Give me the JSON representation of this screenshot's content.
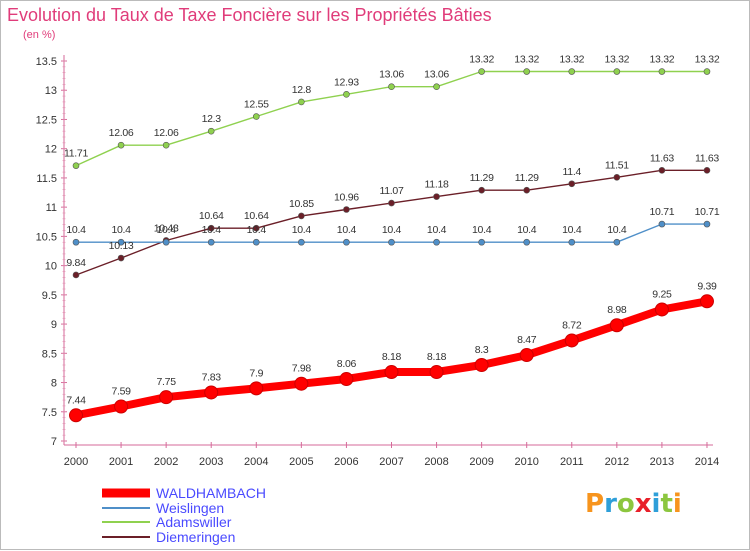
{
  "chart_data": {
    "type": "line",
    "title": "Evolution du Taux de Taxe Foncière sur les Propriétés Bâties",
    "unit_label": "(en %)",
    "x": [
      "2000",
      "2001",
      "2002",
      "2003",
      "2004",
      "2005",
      "2006",
      "2007",
      "2008",
      "2009",
      "2010",
      "2011",
      "2012",
      "2013",
      "2014"
    ],
    "ylim": [
      7,
      13.5
    ],
    "yticks": [
      "7",
      "7.5",
      "8",
      "8.5",
      "9",
      "9.5",
      "10",
      "10.5",
      "11",
      "11.5",
      "12",
      "12.5",
      "13",
      "13.5"
    ],
    "grid": false,
    "legend_position": "bottom-left",
    "series": [
      {
        "name": "WALDHAMBACH",
        "color": "#ff0000",
        "values": [
          7.44,
          7.59,
          7.75,
          7.83,
          7.9,
          7.98,
          8.06,
          8.18,
          8.18,
          8.3,
          8.47,
          8.72,
          8.98,
          9.25,
          9.39
        ],
        "labels": [
          "7.44",
          "7.59",
          "7.75",
          "7.83",
          "7.9",
          "7.98",
          "8.06",
          "8.18",
          "8.18",
          "8.3",
          "8.47",
          "8.72",
          "8.98",
          "9.25",
          "9.39"
        ]
      },
      {
        "name": "Weislingen",
        "color": "#4f8fc8",
        "values": [
          10.4,
          10.4,
          10.4,
          10.4,
          10.4,
          10.4,
          10.4,
          10.4,
          10.4,
          10.4,
          10.4,
          10.4,
          10.4,
          10.71,
          10.71
        ],
        "labels": [
          "10.4",
          "10.4",
          "10.4",
          "10.4",
          "10.4",
          "10.4",
          "10.4",
          "10.4",
          "10.4",
          "10.4",
          "10.4",
          "10.4",
          "10.4",
          "10.71",
          "10.71"
        ]
      },
      {
        "name": "Adamswiller",
        "color": "#8fd14f",
        "values": [
          11.71,
          12.06,
          12.06,
          12.3,
          12.55,
          12.8,
          12.93,
          13.06,
          13.06,
          13.32,
          13.32,
          13.32,
          13.32,
          13.32,
          13.32
        ],
        "labels": [
          "11.71",
          "12.06",
          "12.06",
          "12.3",
          "12.55",
          "12.8",
          "12.93",
          "13.06",
          "13.06",
          "13.32",
          "13.32",
          "13.32",
          "13.32",
          "13.32",
          "13.32"
        ]
      },
      {
        "name": "Diemeringen",
        "color": "#6b1f28",
        "values": [
          9.84,
          10.13,
          10.43,
          10.64,
          10.64,
          10.85,
          10.96,
          11.07,
          11.18,
          11.29,
          11.29,
          11.4,
          11.51,
          11.63,
          11.63
        ],
        "labels": [
          "9.84",
          "10.13",
          "10.43",
          "10.64",
          "10.64",
          "10.85",
          "10.96",
          "11.07",
          "11.18",
          "11.29",
          "11.29",
          "11.4",
          "11.51",
          "11.63",
          "11.63"
        ]
      }
    ]
  },
  "logo": {
    "text": "Proxiti"
  }
}
